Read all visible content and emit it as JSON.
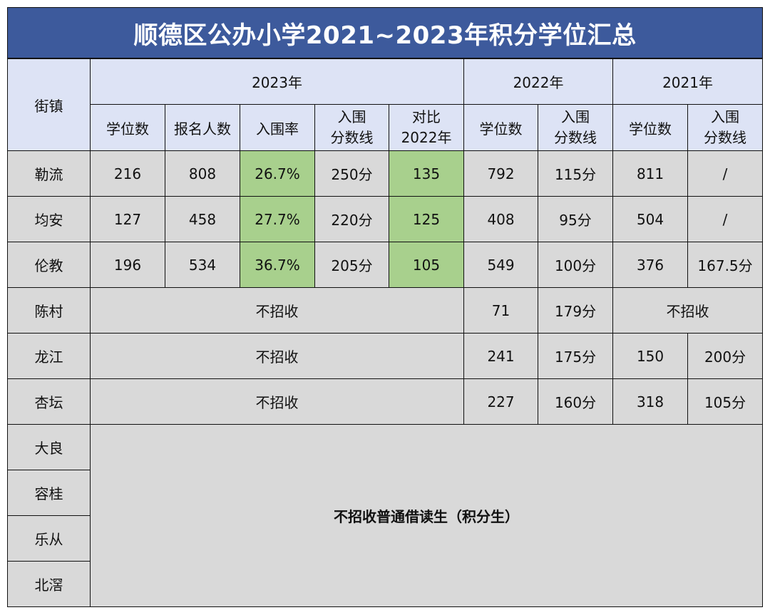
{
  "title": "顺德区公办小学2021~2023年积分学位汇总",
  "header": {
    "town": "街镇",
    "year_2023": "2023年",
    "year_2022": "2022年",
    "year_2021": "2021年",
    "cols_2023": {
      "seats": "学位数",
      "applicants": "报名人数",
      "rate": "入围率",
      "cutoff_l1": "入围",
      "cutoff_l2": "分数线",
      "compare_l1": "对比",
      "compare_l2": "2022年"
    },
    "cols_2022": {
      "seats": "学位数",
      "cutoff_l1": "入围",
      "cutoff_l2": "分数线"
    },
    "cols_2021": {
      "seats": "学位数",
      "cutoff_l1": "入围",
      "cutoff_l2": "分数线"
    }
  },
  "rows": [
    {
      "town": "勒流",
      "seats_2023": "216",
      "applicants_2023": "808",
      "rate_2023": "26.7%",
      "cutoff_2023": "250分",
      "compare_2022": "135",
      "seats_2022": "792",
      "cutoff_2022": "115分",
      "seats_2021": "811",
      "cutoff_2021": "/"
    },
    {
      "town": "均安",
      "seats_2023": "127",
      "applicants_2023": "458",
      "rate_2023": "27.7%",
      "cutoff_2023": "220分",
      "compare_2022": "125",
      "seats_2022": "408",
      "cutoff_2022": "95分",
      "seats_2021": "504",
      "cutoff_2021": "/"
    },
    {
      "town": "伦教",
      "seats_2023": "196",
      "applicants_2023": "534",
      "rate_2023": "36.7%",
      "cutoff_2023": "205分",
      "compare_2022": "105",
      "seats_2022": "549",
      "cutoff_2022": "100分",
      "seats_2021": "376",
      "cutoff_2021": "167.5分"
    },
    {
      "town": "陈村",
      "no_2023": "不招收",
      "seats_2022": "71",
      "cutoff_2022": "179分",
      "no_2021": "不招收"
    },
    {
      "town": "龙江",
      "no_2023": "不招收",
      "seats_2022": "241",
      "cutoff_2022": "175分",
      "seats_2021": "150",
      "cutoff_2021": "200分"
    },
    {
      "town": "杏坛",
      "no_2023": "不招收",
      "seats_2022": "227",
      "cutoff_2022": "160分",
      "seats_2021": "318",
      "cutoff_2021": "105分"
    }
  ],
  "no_admission_towns": [
    "大良",
    "容桂",
    "乐从",
    "北滘"
  ],
  "no_admission_note": "不招收普通借读生（积分生）"
}
